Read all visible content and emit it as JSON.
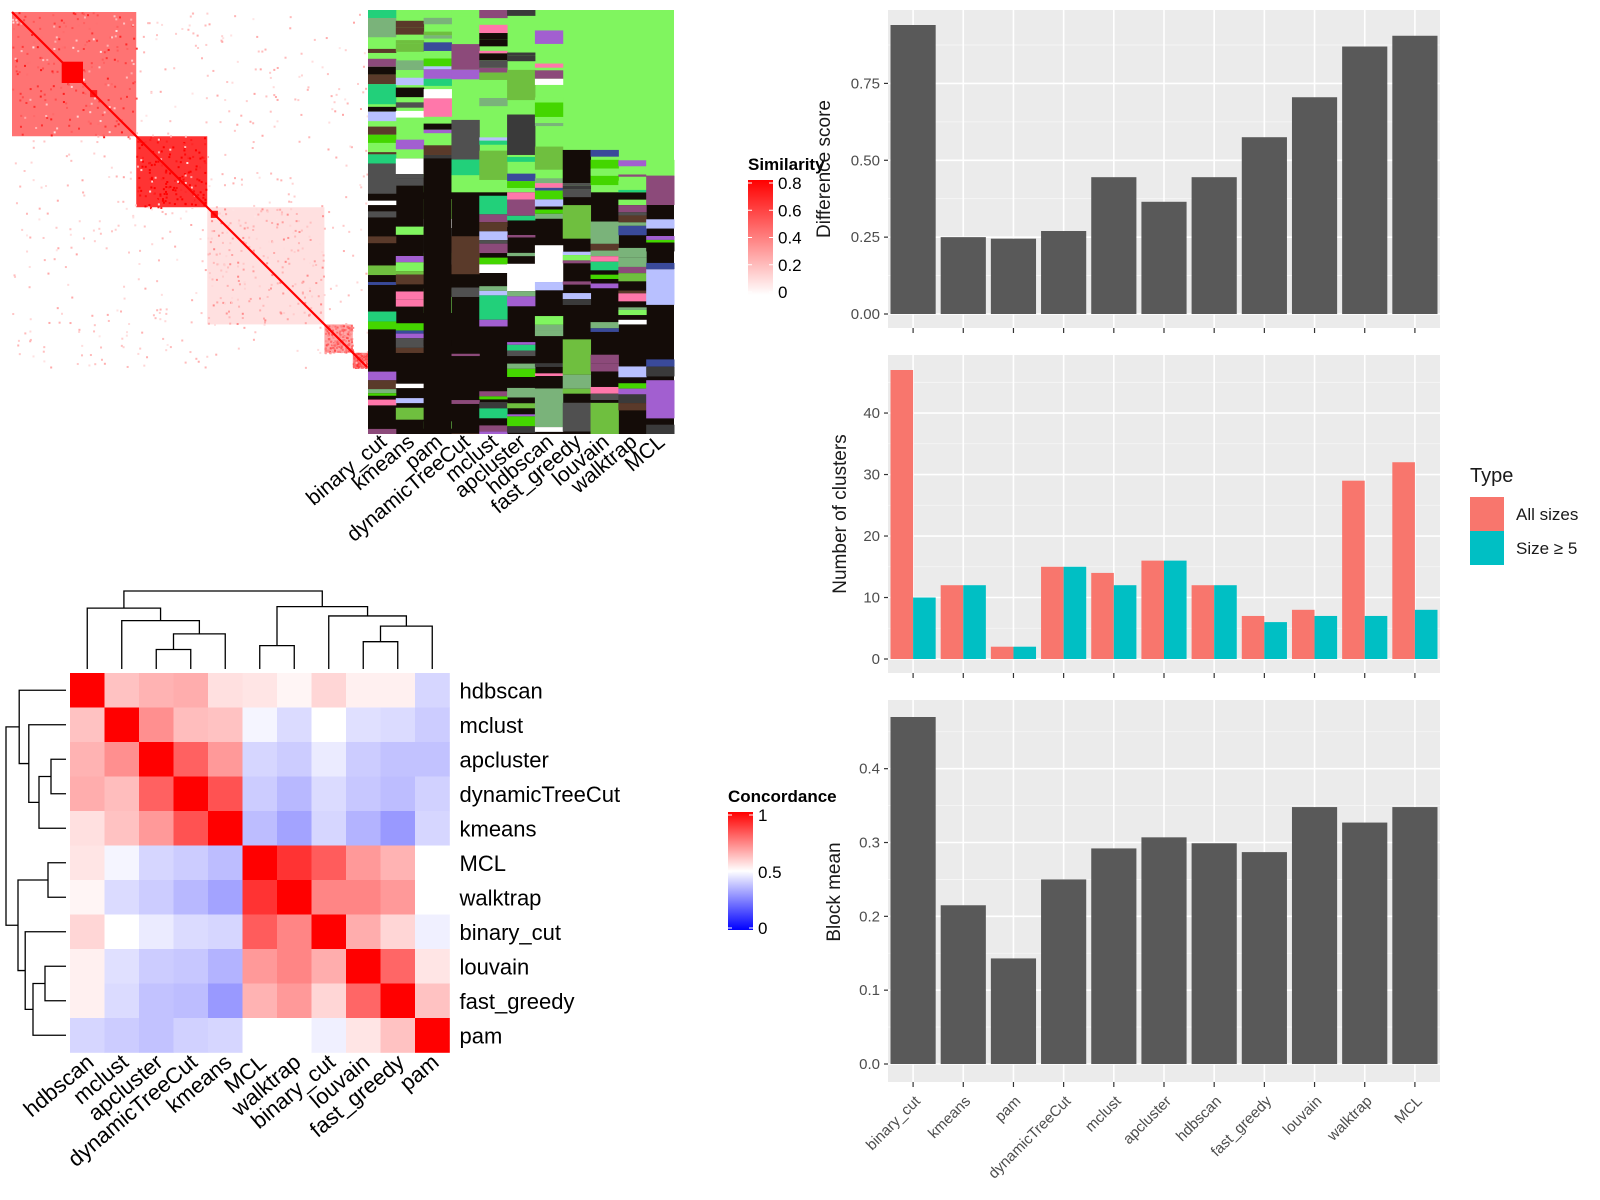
{
  "colors": {
    "red": "#ff0000",
    "white": "#ffffff",
    "blue": "#0000ff",
    "bar_gray": "#595959",
    "panel_bg": "#ebebeb",
    "grid": "#ffffff",
    "all_sizes": "#f8766d",
    "size_ge5": "#00bfc4",
    "class_green": "#80f55f",
    "class_black": "#140c08"
  },
  "chart_data": [
    {
      "type": "heatmap",
      "id": "similarity_matrix",
      "title": "",
      "legend": {
        "title": "Similarity",
        "ticks": [
          "0.8",
          "0.6",
          "0.4",
          "0.2",
          "0"
        ],
        "range": [
          0,
          0.8
        ],
        "colors": [
          "#ffffff",
          "#ff0000"
        ]
      },
      "blocks": [
        {
          "start": 0.0,
          "end": 0.35,
          "strength": 0.55
        },
        {
          "start": 0.35,
          "end": 0.55,
          "strength": 0.8
        },
        {
          "start": 0.55,
          "end": 0.88,
          "strength": 0.12
        },
        {
          "start": 0.88,
          "end": 0.96,
          "strength": 0.35
        },
        {
          "start": 0.96,
          "end": 1.0,
          "strength": 0.45
        }
      ]
    },
    {
      "type": "heatmap",
      "id": "cluster_assignments",
      "title": "",
      "columns": [
        "binary_cut",
        "kmeans",
        "pam",
        "dynamicTreeCut",
        "mclust",
        "apcluster",
        "hdbscan",
        "fast_greedy",
        "louvain",
        "walktrap",
        "MCL"
      ]
    },
    {
      "type": "heatmap",
      "id": "concordance",
      "title": "",
      "legend": {
        "title": "Concordance",
        "ticks": [
          "1",
          "0.5",
          "0"
        ],
        "range": [
          0,
          1
        ],
        "colors": [
          "#0000ff",
          "#ffffff",
          "#ff0000"
        ]
      },
      "rows": [
        "hdbscan",
        "mclust",
        "apcluster",
        "dynamicTreeCut",
        "kmeans",
        "MCL",
        "walktrap",
        "binary_cut",
        "louvain",
        "fast_greedy",
        "pam"
      ],
      "columns": [
        "hdbscan",
        "mclust",
        "apcluster",
        "dynamicTreeCut",
        "kmeans",
        "MCL",
        "walktrap",
        "binary_cut",
        "louvain",
        "fast_greedy",
        "pam"
      ],
      "values": [
        [
          1.0,
          0.62,
          0.65,
          0.66,
          0.56,
          0.55,
          0.52,
          0.58,
          0.53,
          0.53,
          0.42
        ],
        [
          0.62,
          1.0,
          0.72,
          0.63,
          0.62,
          0.48,
          0.43,
          0.5,
          0.44,
          0.43,
          0.4
        ],
        [
          0.65,
          0.72,
          1.0,
          0.81,
          0.7,
          0.42,
          0.4,
          0.46,
          0.4,
          0.38,
          0.38
        ],
        [
          0.66,
          0.63,
          0.81,
          1.0,
          0.84,
          0.4,
          0.36,
          0.43,
          0.39,
          0.37,
          0.41
        ],
        [
          0.56,
          0.62,
          0.7,
          0.84,
          1.0,
          0.37,
          0.32,
          0.42,
          0.35,
          0.3,
          0.42
        ],
        [
          0.55,
          0.48,
          0.42,
          0.4,
          0.37,
          1.0,
          0.9,
          0.82,
          0.7,
          0.65,
          0.5
        ],
        [
          0.52,
          0.43,
          0.4,
          0.36,
          0.32,
          0.9,
          1.0,
          0.74,
          0.74,
          0.7,
          0.5
        ],
        [
          0.58,
          0.5,
          0.46,
          0.43,
          0.42,
          0.82,
          0.74,
          1.0,
          0.66,
          0.58,
          0.47
        ],
        [
          0.53,
          0.44,
          0.4,
          0.39,
          0.35,
          0.7,
          0.74,
          0.66,
          1.0,
          0.8,
          0.55
        ],
        [
          0.53,
          0.43,
          0.38,
          0.37,
          0.3,
          0.65,
          0.7,
          0.58,
          0.8,
          1.0,
          0.62
        ],
        [
          0.42,
          0.4,
          0.38,
          0.41,
          0.42,
          0.5,
          0.5,
          0.47,
          0.55,
          0.62,
          1.0
        ]
      ]
    },
    {
      "type": "bar",
      "id": "difference_score",
      "title": "",
      "xlabel": "",
      "ylabel": "Difference score",
      "ylim": [
        0,
        0.875
      ],
      "yticks": [
        "0.00",
        "0.25",
        "0.50",
        "0.75"
      ],
      "categories": [
        "binary_cut",
        "kmeans",
        "pam",
        "dynamicTreeCut",
        "mclust",
        "apcluster",
        "hdbscan",
        "fast_greedy",
        "louvain",
        "walktrap",
        "MCL"
      ],
      "values": [
        0.94,
        0.25,
        0.245,
        0.27,
        0.445,
        0.365,
        0.445,
        0.575,
        0.705,
        0.87,
        0.905
      ]
    },
    {
      "type": "bar",
      "id": "number_of_clusters",
      "title": "",
      "xlabel": "",
      "ylabel": "Number of clusters",
      "ylim": [
        0,
        47
      ],
      "yticks": [
        "0",
        "10",
        "20",
        "30",
        "40"
      ],
      "categories": [
        "binary_cut",
        "kmeans",
        "pam",
        "dynamicTreeCut",
        "mclust",
        "apcluster",
        "hdbscan",
        "fast_greedy",
        "louvain",
        "walktrap",
        "MCL"
      ],
      "legend": {
        "title": "Type",
        "position": "right"
      },
      "series": [
        {
          "name": "All sizes",
          "values": [
            47,
            12,
            2,
            15,
            14,
            16,
            12,
            7,
            8,
            29,
            32
          ]
        },
        {
          "name": "Size ≥ 5",
          "values": [
            10,
            12,
            2,
            15,
            12,
            16,
            12,
            6,
            7,
            7,
            8
          ]
        }
      ]
    },
    {
      "type": "bar",
      "id": "block_mean",
      "title": "",
      "xlabel": "",
      "ylabel": "Block mean",
      "ylim": [
        0,
        0.47
      ],
      "yticks": [
        "0.0",
        "0.1",
        "0.2",
        "0.3",
        "0.4"
      ],
      "categories": [
        "binary_cut",
        "kmeans",
        "pam",
        "dynamicTreeCut",
        "mclust",
        "apcluster",
        "hdbscan",
        "fast_greedy",
        "louvain",
        "walktrap",
        "MCL"
      ],
      "values": [
        0.47,
        0.215,
        0.143,
        0.25,
        0.292,
        0.307,
        0.299,
        0.287,
        0.348,
        0.327,
        0.348
      ]
    }
  ]
}
